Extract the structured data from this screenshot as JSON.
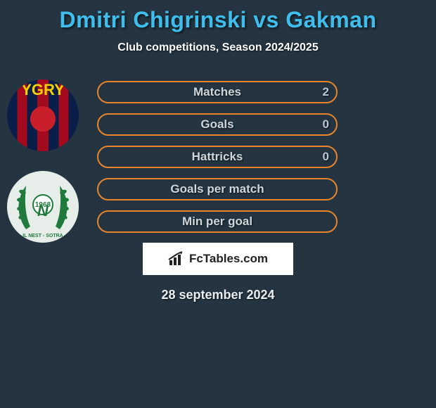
{
  "title": "Dmitri Chigrinski vs Gakman",
  "subtitle": "Club competitions, Season 2024/2025",
  "date": "28 september 2024",
  "logo": {
    "prefix": "Fc",
    "suffix": "Tables.com"
  },
  "colors": {
    "background": "#243541",
    "title": "#3fbeee",
    "pill_border": "#e8852c",
    "right_pill_bg": "#ffffff",
    "text_light": "#cdd6dc"
  },
  "avatar1": {
    "text": "YGRY"
  },
  "avatar2": {
    "year": "1968",
    "club": "IL NEST - SOTRA"
  },
  "stats": [
    {
      "label": "Matches",
      "left_value": "2",
      "show_right_pill": true
    },
    {
      "label": "Goals",
      "left_value": "0",
      "show_right_pill": true
    },
    {
      "label": "Hattricks",
      "left_value": "0",
      "show_right_pill": false
    },
    {
      "label": "Goals per match",
      "left_value": "",
      "show_right_pill": false
    },
    {
      "label": "Min per goal",
      "left_value": "",
      "show_right_pill": false
    }
  ]
}
